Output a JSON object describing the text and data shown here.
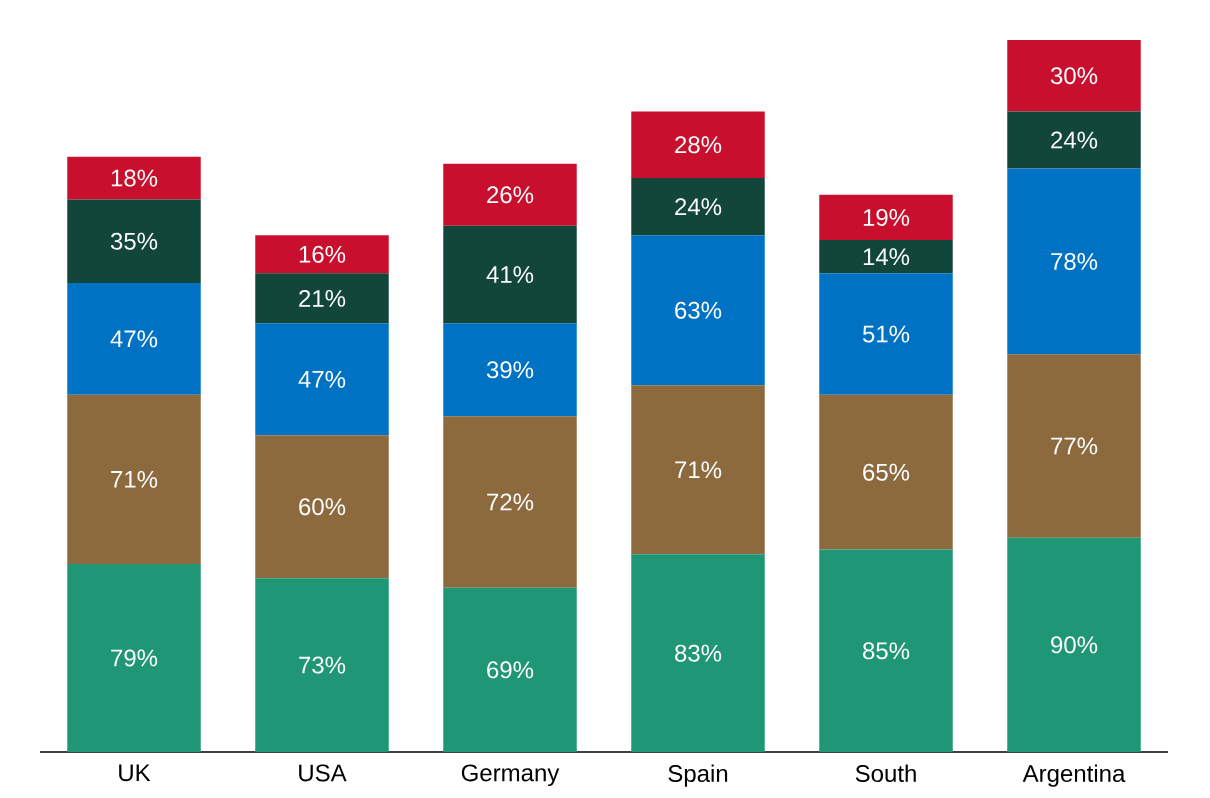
{
  "chart_data": {
    "type": "bar",
    "stacked": true,
    "categories": [
      "UK",
      "USA",
      "Germany",
      "Spain",
      "South",
      "Argentina"
    ],
    "series": [
      {
        "color": "#1f9676",
        "values": [
          79,
          73,
          69,
          83,
          85,
          90
        ],
        "value_labels": [
          "79%",
          "73%",
          "69%",
          "83%",
          "85%",
          "90%"
        ]
      },
      {
        "color": "#8c6a3e",
        "values": [
          71,
          60,
          72,
          71,
          65,
          77
        ],
        "value_labels": [
          "71%",
          "60%",
          "72%",
          "71%",
          "65%",
          "77%"
        ]
      },
      {
        "color": "#0072c3",
        "values": [
          47,
          47,
          39,
          63,
          51,
          78
        ],
        "value_labels": [
          "47%",
          "47%",
          "39%",
          "63%",
          "51%",
          "78%"
        ]
      },
      {
        "color": "#12463a",
        "values": [
          35,
          21,
          41,
          24,
          14,
          24
        ],
        "value_labels": [
          "35%",
          "21%",
          "41%",
          "24%",
          "14%",
          "24%"
        ]
      },
      {
        "color": "#c8102e",
        "values": [
          18,
          16,
          26,
          28,
          19,
          30
        ],
        "value_labels": [
          "18%",
          "16%",
          "26%",
          "28%",
          "19%",
          "30%"
        ]
      }
    ]
  }
}
